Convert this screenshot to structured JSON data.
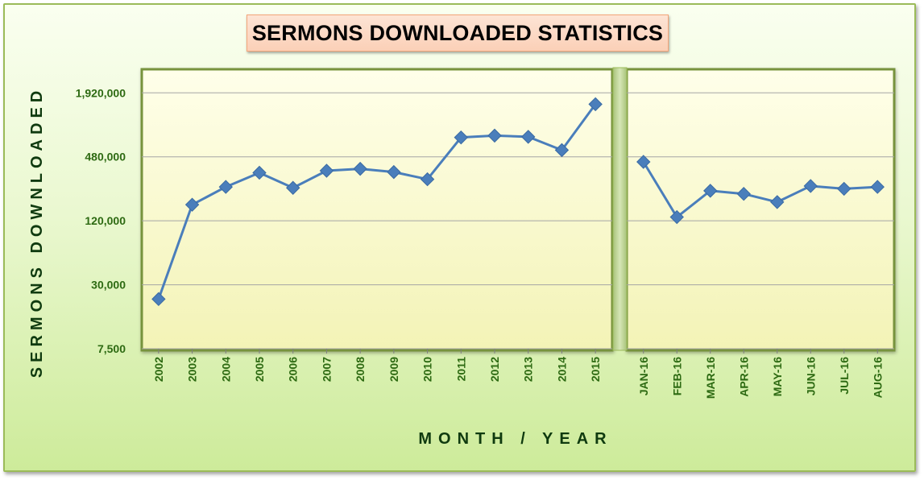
{
  "chart_data": {
    "type": "line",
    "title": "SERMONS DOWNLOADED STATISTICS",
    "xlabel": "MONTH / YEAR",
    "ylabel": "SERMONS DOWNLOADED",
    "y_scale": "log",
    "ylim": [
      7500,
      3200000
    ],
    "yticks": [
      7500,
      30000,
      120000,
      480000,
      1920000
    ],
    "ytick_labels": [
      "7,500",
      "30,000",
      "120,000",
      "480,000",
      "1,920,000"
    ],
    "grid": true,
    "legend": "none",
    "line_color": "#4a7ebb",
    "panels": [
      {
        "series": [
          {
            "categories": [
              "2002",
              "2003",
              "2004",
              "2005",
              "2006",
              "2007",
              "2008",
              "2009",
              "2010",
              "2011",
              "2012",
              "2013",
              "2014",
              "2015"
            ],
            "values": [
              22000,
              170000,
              250000,
              340000,
              245000,
              355000,
              370000,
              345000,
              295000,
              730000,
              760000,
              740000,
              555000,
              1500000
            ]
          }
        ]
      },
      {
        "series": [
          {
            "categories": [
              "JAN-16",
              "FEB-16",
              "MAR-16",
              "APR-16",
              "MAY-16",
              "JUN-16",
              "JUL-16",
              "AUG-16"
            ],
            "values": [
              430000,
              130000,
              230000,
              215000,
              180000,
              255000,
              240000,
              250000
            ]
          }
        ]
      }
    ]
  },
  "colors": {
    "frame_border": "#9bbb59",
    "plot_fill_top": "#ffffe6",
    "plot_fill_bottom": "#f4f4b4",
    "plot_border": "#77933c",
    "tick_text": "#2d6a12",
    "axis_title_text": "#0f3a0f"
  }
}
